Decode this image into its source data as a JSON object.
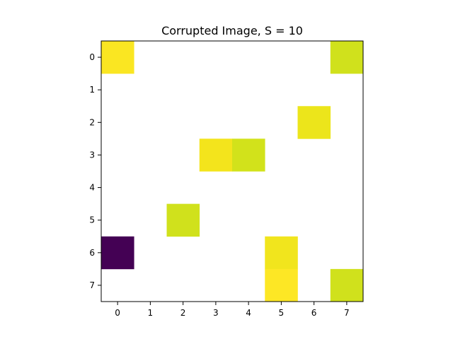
{
  "chart_data": {
    "type": "heatmap",
    "title": "Corrupted Image, S = 10",
    "xlabel": "",
    "ylabel": "",
    "x_ticks": [
      "0",
      "1",
      "2",
      "3",
      "4",
      "5",
      "6",
      "7"
    ],
    "y_ticks": [
      "0",
      "1",
      "2",
      "3",
      "4",
      "5",
      "6",
      "7"
    ],
    "rows": 8,
    "cols": 8,
    "grid": false,
    "background_color": "#ffffff",
    "cells": [
      {
        "row": 0,
        "col": 0,
        "color": "#fae622"
      },
      {
        "row": 0,
        "col": 7,
        "color": "#d0e11c"
      },
      {
        "row": 2,
        "col": 6,
        "color": "#ece51b"
      },
      {
        "row": 3,
        "col": 3,
        "color": "#f3e41c"
      },
      {
        "row": 3,
        "col": 4,
        "color": "#d2e21b"
      },
      {
        "row": 5,
        "col": 2,
        "color": "#d0e11c"
      },
      {
        "row": 6,
        "col": 0,
        "color": "#440154"
      },
      {
        "row": 6,
        "col": 5,
        "color": "#f1e51d"
      },
      {
        "row": 7,
        "col": 5,
        "color": "#fde725"
      },
      {
        "row": 7,
        "col": 7,
        "color": "#d0e11c"
      }
    ]
  }
}
